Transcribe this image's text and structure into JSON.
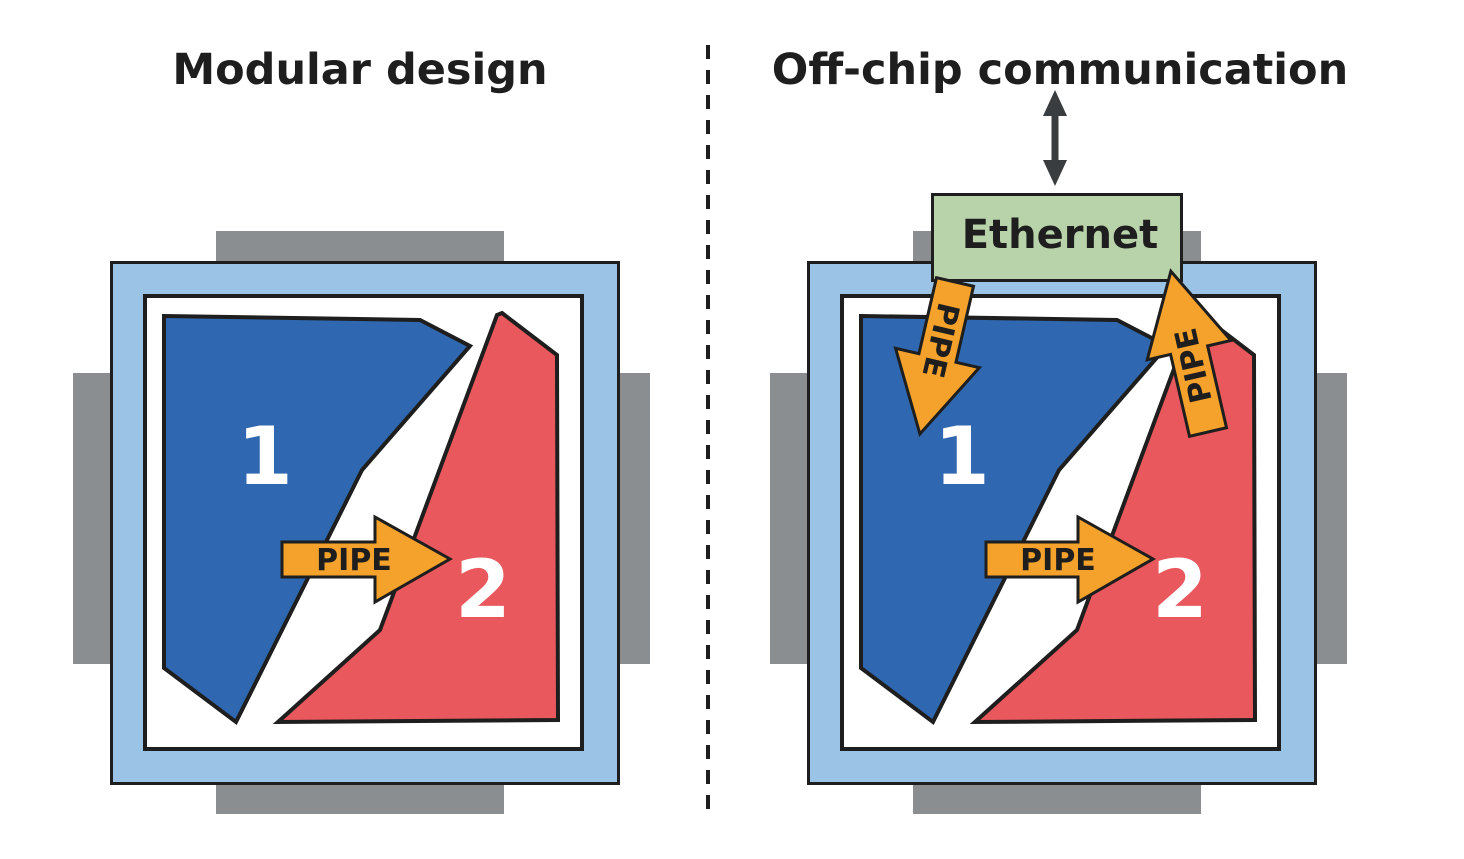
{
  "panels": [
    {
      "title": "Modular design",
      "region_labels": [
        "1",
        "2"
      ],
      "pipe_labels": [
        "PIPE"
      ]
    },
    {
      "title": "Off-chip communication",
      "region_labels": [
        "1",
        "2"
      ],
      "pipe_labels": [
        "PIPE",
        "PIPE",
        "PIPE"
      ],
      "ethernet_label": "Ethernet"
    }
  ],
  "colors": {
    "package_gray": "#8b8e90",
    "substrate_blue": "#9ac3e5",
    "outline": "#1e1e1e",
    "region_1_blue": "#2f68b0",
    "region_2_red": "#e8585c",
    "pipe_orange": "#f4a22b",
    "ethernet_green": "#b8d3a9",
    "arrow_dark": "#3a3d3f"
  }
}
